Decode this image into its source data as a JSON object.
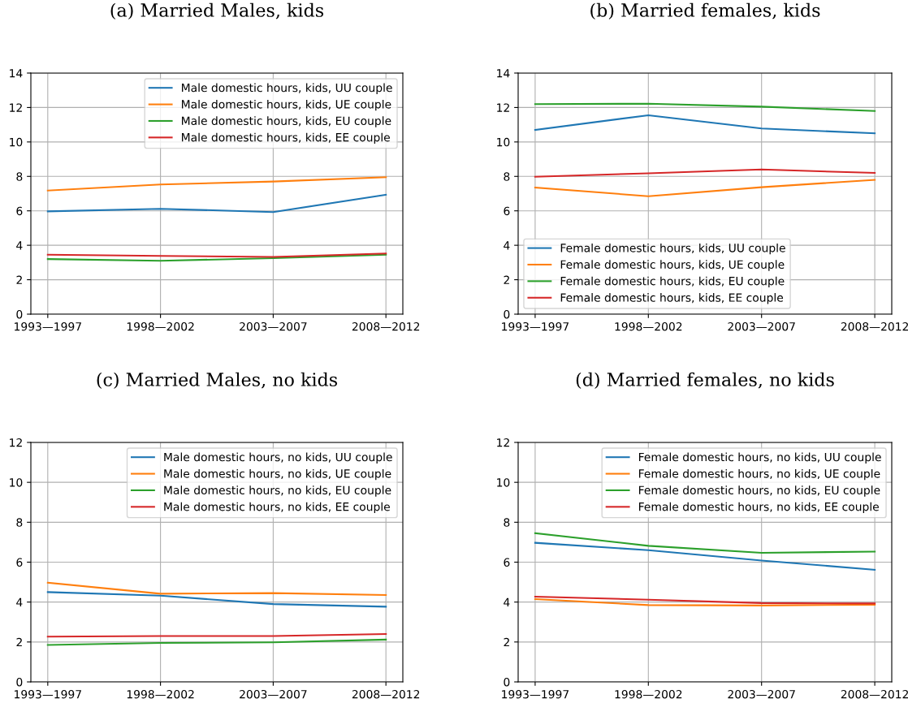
{
  "chart_data": [
    {
      "type": "line",
      "title": "(a) Married Males, kids",
      "categories": [
        "1993—1997",
        "1998—2002",
        "2003—2007",
        "2008—2012"
      ],
      "ylim": [
        0,
        14
      ],
      "yticks": [
        0,
        2,
        4,
        6,
        8,
        10,
        12,
        14
      ],
      "grid": true,
      "legend": "top right",
      "series": [
        {
          "name": "Male domestic hours, kids, UU couple",
          "color": "#1f77b4",
          "values": [
            5.97,
            6.12,
            5.93,
            6.93
          ]
        },
        {
          "name": "Male domestic hours, kids, UE couple",
          "color": "#ff7f0e",
          "values": [
            7.18,
            7.53,
            7.7,
            7.95
          ]
        },
        {
          "name": "Male domestic hours, kids, EU couple",
          "color": "#2ca02c",
          "values": [
            3.2,
            3.1,
            3.25,
            3.45
          ]
        },
        {
          "name": "Male domestic hours, kids, EE couple",
          "color": "#d62728",
          "values": [
            3.45,
            3.38,
            3.32,
            3.52
          ]
        }
      ]
    },
    {
      "type": "line",
      "title": "(b) Married females, kids",
      "categories": [
        "1993—1997",
        "1998—2002",
        "2003—2007",
        "2008—2012"
      ],
      "ylim": [
        0,
        14
      ],
      "yticks": [
        0,
        2,
        4,
        6,
        8,
        10,
        12,
        14
      ],
      "grid": true,
      "legend": "bottom left",
      "series": [
        {
          "name": "Female domestic hours, kids, UU couple",
          "color": "#1f77b4",
          "values": [
            10.7,
            11.55,
            10.78,
            10.5
          ]
        },
        {
          "name": "Female domestic hours, kids, UE couple",
          "color": "#ff7f0e",
          "values": [
            7.35,
            6.85,
            7.37,
            7.8
          ]
        },
        {
          "name": "Female domestic hours, kids, EU couple",
          "color": "#2ca02c",
          "values": [
            12.2,
            12.22,
            12.05,
            11.8
          ]
        },
        {
          "name": "Female domestic hours, kids, EE couple",
          "color": "#d62728",
          "values": [
            7.98,
            8.18,
            8.4,
            8.2
          ]
        }
      ]
    },
    {
      "type": "line",
      "title": "(c) Married Males, no kids",
      "categories": [
        "1993—1997",
        "1998—2002",
        "2003—2007",
        "2008—2012"
      ],
      "ylim": [
        0,
        12
      ],
      "yticks": [
        0,
        2,
        4,
        6,
        8,
        10,
        12
      ],
      "grid": true,
      "legend": "top right",
      "series": [
        {
          "name": "Male domestic hours, no kids, UU couple",
          "color": "#1f77b4",
          "values": [
            4.5,
            4.32,
            3.9,
            3.77
          ]
        },
        {
          "name": "Male domestic hours, no kids, UE couple",
          "color": "#ff7f0e",
          "values": [
            4.97,
            4.42,
            4.45,
            4.35
          ]
        },
        {
          "name": "Male domestic hours, no kids, EU couple",
          "color": "#2ca02c",
          "values": [
            1.85,
            1.95,
            1.98,
            2.12
          ]
        },
        {
          "name": "Male domestic hours, no kids, EE couple",
          "color": "#d62728",
          "values": [
            2.27,
            2.3,
            2.3,
            2.4
          ]
        }
      ]
    },
    {
      "type": "line",
      "title": "(d) Married females, no kids",
      "categories": [
        "1993—1997",
        "1998—2002",
        "2003—2007",
        "2008—2012"
      ],
      "ylim": [
        0,
        12
      ],
      "yticks": [
        0,
        2,
        4,
        6,
        8,
        10,
        12
      ],
      "grid": true,
      "legend": "top right",
      "series": [
        {
          "name": "Female domestic hours, no kids, UU couple",
          "color": "#1f77b4",
          "values": [
            6.97,
            6.6,
            6.08,
            5.62
          ]
        },
        {
          "name": "Female domestic hours, no kids, UE couple",
          "color": "#ff7f0e",
          "values": [
            4.15,
            3.85,
            3.83,
            3.87
          ]
        },
        {
          "name": "Female domestic hours, no kids, EU couple",
          "color": "#2ca02c",
          "values": [
            7.45,
            6.82,
            6.47,
            6.53
          ]
        },
        {
          "name": "Female domestic hours, no kids, EE couple",
          "color": "#d62728",
          "values": [
            4.27,
            4.12,
            3.95,
            3.93
          ]
        }
      ]
    }
  ]
}
